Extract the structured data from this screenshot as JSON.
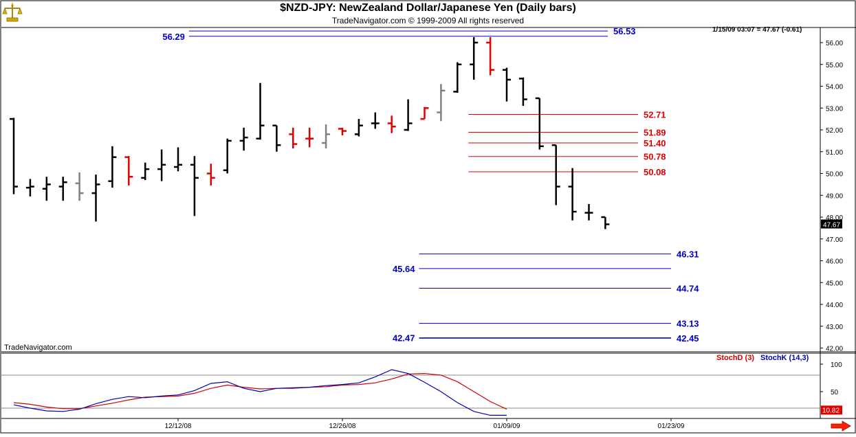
{
  "header": {
    "title": "$NZD-JPY:  NewZealand Dollar/Japanese Yen  (Daily bars)",
    "subtitle": "TradeNavigator.com © 1999-2009 All rights reserved"
  },
  "readout": "1/15/09 03:07 = 47.67 (-0.61)",
  "brand_label": "TradeNavigator.com",
  "logo_icon": "gold-scale-logo-icon",
  "nav_icon": "red-right-arrow-icon",
  "colors": {
    "up": "#000000",
    "down": "#e00000",
    "neutral": "#808080",
    "blue_levels": "#0000c8",
    "red_levels": "#e00000"
  },
  "chart_data": [
    {
      "type": "ohlc",
      "y_axis_side": "right",
      "ylim": [
        41.6,
        56.6
      ],
      "y_ticks": [
        "56.00",
        "55.00",
        "54.00",
        "53.00",
        "52.00",
        "51.00",
        "50.00",
        "49.00",
        "48.00",
        "47.00",
        "46.00",
        "45.00",
        "44.00",
        "43.00",
        "42.00"
      ],
      "x_tick_labels": [
        {
          "label": "12/12/08",
          "index": 10
        },
        {
          "label": "12/26/08",
          "index": 20
        },
        {
          "label": "01/09/09",
          "index": 30
        },
        {
          "label": "01/23/09",
          "index": 40
        }
      ],
      "last_price_label": "47.67",
      "bars": [
        {
          "o": 52.5,
          "h": 52.55,
          "l": 49.05,
          "c": 49.4,
          "color": "up"
        },
        {
          "o": 49.35,
          "h": 49.75,
          "l": 48.95,
          "c": 49.4,
          "color": "up"
        },
        {
          "o": 49.3,
          "h": 49.85,
          "l": 48.75,
          "c": 49.5,
          "color": "up"
        },
        {
          "o": 49.4,
          "h": 49.85,
          "l": 48.75,
          "c": 49.6,
          "color": "up"
        },
        {
          "o": 49.55,
          "h": 50.05,
          "l": 48.75,
          "c": 49.1,
          "color": "neutral"
        },
        {
          "o": 49.1,
          "h": 49.95,
          "l": 47.8,
          "c": 49.5,
          "color": "up"
        },
        {
          "o": 49.65,
          "h": 51.25,
          "l": 49.35,
          "c": 50.75,
          "color": "up"
        },
        {
          "o": 50.75,
          "h": 50.8,
          "l": 49.45,
          "c": 49.85,
          "color": "down"
        },
        {
          "o": 49.8,
          "h": 50.5,
          "l": 49.7,
          "c": 50.2,
          "color": "up"
        },
        {
          "o": 50.2,
          "h": 51.1,
          "l": 49.65,
          "c": 50.4,
          "color": "up"
        },
        {
          "o": 50.3,
          "h": 51.2,
          "l": 50.1,
          "c": 50.4,
          "color": "up"
        },
        {
          "o": 50.4,
          "h": 50.8,
          "l": 48.05,
          "c": 49.8,
          "color": "up"
        },
        {
          "o": 50.0,
          "h": 50.45,
          "l": 49.45,
          "c": 49.8,
          "color": "down"
        },
        {
          "o": 50.15,
          "h": 51.6,
          "l": 50.0,
          "c": 51.5,
          "color": "up"
        },
        {
          "o": 51.5,
          "h": 52.1,
          "l": 51.05,
          "c": 51.65,
          "color": "up"
        },
        {
          "o": 51.6,
          "h": 54.15,
          "l": 51.55,
          "c": 52.2,
          "color": "up"
        },
        {
          "o": 52.2,
          "h": 52.2,
          "l": 51.0,
          "c": 51.3,
          "color": "up"
        },
        {
          "o": 51.8,
          "h": 52.1,
          "l": 51.15,
          "c": 51.35,
          "color": "down"
        },
        {
          "o": 51.6,
          "h": 52.1,
          "l": 51.2,
          "c": 51.6,
          "color": "down"
        },
        {
          "o": 51.4,
          "h": 52.25,
          "l": 51.15,
          "c": 51.8,
          "color": "neutral"
        },
        {
          "o": 52.05,
          "h": 52.1,
          "l": 51.75,
          "c": 51.95,
          "color": "down"
        },
        {
          "o": 51.8,
          "h": 52.5,
          "l": 51.7,
          "c": 52.2,
          "color": "up"
        },
        {
          "o": 52.3,
          "h": 52.8,
          "l": 52.05,
          "c": 52.3,
          "color": "up"
        },
        {
          "o": 52.3,
          "h": 52.65,
          "l": 51.85,
          "c": 52.15,
          "color": "down"
        },
        {
          "o": 52.0,
          "h": 53.4,
          "l": 51.95,
          "c": 52.3,
          "color": "up"
        },
        {
          "o": 52.5,
          "h": 53.05,
          "l": 52.5,
          "c": 53.0,
          "color": "down"
        },
        {
          "o": 52.8,
          "h": 54.1,
          "l": 52.4,
          "c": 53.8,
          "color": "neutral"
        },
        {
          "o": 53.75,
          "h": 55.1,
          "l": 53.7,
          "c": 55.0,
          "color": "up"
        },
        {
          "o": 55.0,
          "h": 56.25,
          "l": 54.3,
          "c": 56.0,
          "color": "up"
        },
        {
          "o": 56.0,
          "h": 56.25,
          "l": 54.5,
          "c": 54.75,
          "color": "down"
        },
        {
          "o": 54.75,
          "h": 54.85,
          "l": 53.3,
          "c": 54.3,
          "color": "up"
        },
        {
          "o": 54.35,
          "h": 54.4,
          "l": 53.1,
          "c": 53.4,
          "color": "up"
        },
        {
          "o": 53.45,
          "h": 53.45,
          "l": 51.1,
          "c": 51.25,
          "color": "up"
        },
        {
          "o": 51.3,
          "h": 51.3,
          "l": 48.55,
          "c": 49.4,
          "color": "up"
        },
        {
          "o": 49.4,
          "h": 50.25,
          "l": 47.85,
          "c": 48.25,
          "color": "up"
        },
        {
          "o": 48.2,
          "h": 48.6,
          "l": 47.85,
          "c": 48.2,
          "color": "up"
        },
        {
          "o": 48.0,
          "h": 48.0,
          "l": 47.45,
          "c": 47.67,
          "color": "up"
        }
      ],
      "levels": [
        {
          "value": 56.53,
          "label": "56.53",
          "label_side": "right",
          "start_index": 11,
          "color": "blue_levels"
        },
        {
          "value": 56.29,
          "label": "56.29",
          "label_side": "left",
          "start_index": 11,
          "color": "blue_levels"
        },
        {
          "value": 52.71,
          "label": "52.71",
          "label_side": "right",
          "start_index": 28,
          "color": "red_levels"
        },
        {
          "value": 51.89,
          "label": "51.89",
          "label_side": "right",
          "start_index": 28,
          "color": "red_levels"
        },
        {
          "value": 51.4,
          "label": "51.40",
          "label_side": "right",
          "start_index": 28,
          "color": "red_levels"
        },
        {
          "value": 50.78,
          "label": "50.78",
          "label_side": "right",
          "start_index": 28,
          "color": "red_levels"
        },
        {
          "value": 50.08,
          "label": "50.08",
          "label_side": "right",
          "start_index": 28,
          "color": "red_levels"
        },
        {
          "value": 46.31,
          "label": "46.31",
          "label_side": "right",
          "start_index": 25,
          "color": "blue_levels"
        },
        {
          "value": 45.64,
          "label": "45.64",
          "label_side": "left",
          "start_index": 25,
          "color": "blue_levels"
        },
        {
          "value": 44.74,
          "label": "44.74",
          "label_side": "right",
          "start_index": 25,
          "color": "blue_levels"
        },
        {
          "value": 43.13,
          "label": "43.13",
          "label_side": "right",
          "start_index": 25,
          "color": "blue_levels"
        },
        {
          "value": 42.47,
          "label": "42.47",
          "label_side": "left",
          "start_index": 25,
          "color": "blue_levels"
        },
        {
          "value": 42.45,
          "label": "42.45",
          "label_side": "right",
          "start_index": 25,
          "color": "blue_levels"
        }
      ]
    },
    {
      "type": "line",
      "title": "",
      "ylim": [
        0,
        120
      ],
      "y_ticks": [
        "100",
        "50"
      ],
      "ref_lines": [
        80,
        20
      ],
      "last_value_label": "10.82",
      "series": [
        {
          "name": "StochD (3)",
          "color": "#d00000",
          "values": [
            30,
            27,
            22,
            19,
            19,
            24,
            29,
            35,
            40,
            41,
            42,
            47,
            56,
            62,
            58,
            55,
            56,
            56,
            58,
            59,
            62,
            63,
            66,
            73,
            82,
            83,
            80,
            68,
            50,
            32,
            18
          ]
        },
        {
          "name": "StochK (14,3)",
          "color": "#0000b0",
          "values": [
            26,
            20,
            15,
            14,
            18,
            28,
            36,
            41,
            39,
            42,
            44,
            52,
            65,
            68,
            56,
            50,
            56,
            57,
            58,
            61,
            63,
            66,
            77,
            90,
            83,
            67,
            50,
            30,
            14,
            7,
            7
          ]
        }
      ],
      "legend_text": [
        "StochD (3)",
        "StochK (14,3)"
      ]
    }
  ]
}
